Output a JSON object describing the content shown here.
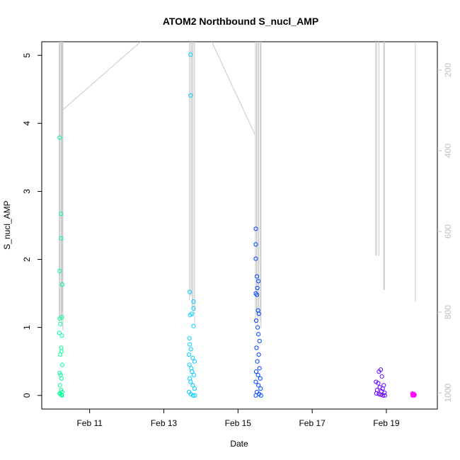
{
  "chart_data": {
    "type": "scatter",
    "title": "ATOM2 Northbound S_nucl_AMP",
    "xlabel": "Date",
    "ylabel": "S_nucl_AMP",
    "x_axis": {
      "unit": "date",
      "range": [
        "Feb 9 17:00",
        "Feb 20 09:00"
      ],
      "ticks": [
        "Feb 11",
        "Feb 13",
        "Feb 15",
        "Feb 17",
        "Feb 19"
      ]
    },
    "y_axis": {
      "range": [
        -0.2,
        5.2
      ],
      "ticks": [
        "0",
        "1",
        "2",
        "3",
        "4",
        "5"
      ]
    },
    "y2_axis": {
      "note": "secondary right axis, inverted (depth)",
      "range": [
        1040,
        130
      ],
      "ticks": [
        "200",
        "400",
        "600",
        "800",
        "1000"
      ],
      "color": "#c0c0c0"
    },
    "grid": false,
    "series": [
      {
        "color": "#00ff99",
        "day": "Feb 10",
        "points": [
          [
            "Feb 10 04:36",
            3.79
          ],
          [
            "Feb 10 05:31",
            2.67
          ],
          [
            "Feb 10 05:31",
            2.31
          ],
          [
            "Feb 10 04:36",
            1.83
          ],
          [
            "Feb 10 06:14",
            1.63
          ],
          [
            "Feb 10 06:00",
            1.15
          ],
          [
            "Feb 10 04:36",
            1.13
          ],
          [
            "Feb 10 05:00",
            1.05
          ],
          [
            "Feb 10 04:19",
            0.92
          ],
          [
            "Feb 10 06:00",
            0.88
          ],
          [
            "Feb 10 05:31",
            0.7
          ],
          [
            "Feb 10 05:45",
            0.65
          ],
          [
            "Feb 10 05:00",
            0.6
          ],
          [
            "Feb 10 06:14",
            0.45
          ],
          [
            "Feb 10 04:36",
            0.33
          ],
          [
            "Feb 10 05:15",
            0.3
          ],
          [
            "Feb 10 05:45",
            0.25
          ],
          [
            "Feb 10 04:48",
            0.15
          ],
          [
            "Feb 10 05:31",
            0.08
          ],
          [
            "Feb 10 06:14",
            0.05
          ],
          [
            "Feb 10 04:36",
            0.03
          ],
          [
            "Feb 10 05:00",
            0.02
          ],
          [
            "Feb 10 05:45",
            0.01
          ],
          [
            "Feb 10 06:00",
            0.0
          ]
        ]
      },
      {
        "color": "#00ccff",
        "day": "Feb 13",
        "points": [
          [
            "Feb 13 17:17",
            5.01
          ],
          [
            "Feb 13 17:17",
            4.41
          ],
          [
            "Feb 13 16:48",
            1.52
          ],
          [
            "Feb 13 19:12",
            1.38
          ],
          [
            "Feb 13 19:12",
            1.28
          ],
          [
            "Feb 13 18:00",
            1.2
          ],
          [
            "Feb 13 17:02",
            1.18
          ],
          [
            "Feb 13 19:12",
            1.02
          ],
          [
            "Feb 13 16:34",
            0.84
          ],
          [
            "Feb 13 16:48",
            0.75
          ],
          [
            "Feb 13 17:31",
            0.68
          ],
          [
            "Feb 13 16:19",
            0.6
          ],
          [
            "Feb 13 18:43",
            0.55
          ],
          [
            "Feb 13 19:55",
            0.5
          ],
          [
            "Feb 13 16:34",
            0.45
          ],
          [
            "Feb 13 17:46",
            0.4
          ],
          [
            "Feb 13 18:14",
            0.35
          ],
          [
            "Feb 13 19:26",
            0.3
          ],
          [
            "Feb 13 16:48",
            0.25
          ],
          [
            "Feb 13 17:17",
            0.2
          ],
          [
            "Feb 13 18:43",
            0.15
          ],
          [
            "Feb 13 19:55",
            0.1
          ],
          [
            "Feb 13 16:19",
            0.05
          ],
          [
            "Feb 13 17:31",
            0.02
          ],
          [
            "Feb 13 18:58",
            0.0
          ],
          [
            "Feb 13 20:10",
            0.0
          ]
        ]
      },
      {
        "color": "#0044ff",
        "day": "Feb 15",
        "points": [
          [
            "Feb 15 11:31",
            2.45
          ],
          [
            "Feb 15 11:31",
            2.22
          ],
          [
            "Feb 15 11:31",
            2.01
          ],
          [
            "Feb 15 12:14",
            1.75
          ],
          [
            "Feb 15 13:12",
            1.68
          ],
          [
            "Feb 15 12:29",
            1.58
          ],
          [
            "Feb 15 11:31",
            1.5
          ],
          [
            "Feb 15 12:14",
            1.48
          ],
          [
            "Feb 15 12:58",
            1.25
          ],
          [
            "Feb 15 13:26",
            1.2
          ],
          [
            "Feb 15 11:46",
            1.1
          ],
          [
            "Feb 15 12:43",
            1.0
          ],
          [
            "Feb 15 13:12",
            0.9
          ],
          [
            "Feb 15 13:55",
            0.8
          ],
          [
            "Feb 15 12:00",
            0.7
          ],
          [
            "Feb 15 13:26",
            0.6
          ],
          [
            "Feb 15 12:29",
            0.5
          ],
          [
            "Feb 15 13:55",
            0.4
          ],
          [
            "Feb 15 11:46",
            0.35
          ],
          [
            "Feb 15 12:58",
            0.3
          ],
          [
            "Feb 15 14:24",
            0.25
          ],
          [
            "Feb 15 11:31",
            0.2
          ],
          [
            "Feb 15 13:12",
            0.15
          ],
          [
            "Feb 15 14:38",
            0.1
          ],
          [
            "Feb 15 12:14",
            0.05
          ],
          [
            "Feb 15 13:40",
            0.02
          ],
          [
            "Feb 15 14:53",
            0.0
          ],
          [
            "Feb 15 11:31",
            0.0
          ]
        ]
      },
      {
        "color": "#6600ff",
        "day": "Feb 18-19",
        "points": [
          [
            "Feb 18 20:24",
            0.38
          ],
          [
            "Feb 18 19:12",
            0.35
          ],
          [
            "Feb 18 21:07",
            0.28
          ],
          [
            "Feb 18 17:17",
            0.2
          ],
          [
            "Feb 18 18:43",
            0.18
          ],
          [
            "Feb 18 22:19",
            0.15
          ],
          [
            "Feb 18 19:41",
            0.12
          ],
          [
            "Feb 18 21:36",
            0.1
          ],
          [
            "Feb 18 18:00",
            0.08
          ],
          [
            "Feb 18 20:53",
            0.06
          ],
          [
            "Feb 18 22:48",
            0.04
          ],
          [
            "Feb 18 17:31",
            0.03
          ],
          [
            "Feb 18 19:12",
            0.02
          ],
          [
            "Feb 18 20:24",
            0.01
          ],
          [
            "Feb 18 21:50",
            0.0
          ],
          [
            "Feb 18 23:02",
            0.0
          ]
        ]
      },
      {
        "color": "#ff00ff",
        "day": "Feb 19",
        "points": [
          [
            "Feb 19 16:48",
            0.03
          ],
          [
            "Feb 19 17:17",
            0.02
          ],
          [
            "Feb 19 17:46",
            0.02
          ],
          [
            "Feb 19 18:14",
            0.01
          ],
          [
            "Feb 19 17:02",
            0.0
          ],
          [
            "Feb 19 17:31",
            0.0
          ],
          [
            "Feb 19 18:00",
            0.0
          ]
        ]
      }
    ],
    "depth_lines": {
      "color": "#c8c8c8",
      "segments": [
        {
          "x": "Feb 10 04:19",
          "top": 130,
          "bottom": 825
        },
        {
          "x": "Feb 10 04:48",
          "top": 130,
          "bottom": 810
        },
        {
          "x": "Feb 10 05:31",
          "top": 130,
          "bottom": 820
        },
        {
          "x": "Feb 10 06:00",
          "top": 130,
          "bottom": 835
        },
        {
          "x": "Feb 10 06:14",
          "top": 130,
          "bottom": 800
        },
        {
          "x": "Feb 10 06:43",
          "top": 130,
          "bottom": 845
        },
        {
          "x": "Feb 13 16:34",
          "top": 130,
          "bottom": 770
        },
        {
          "x": "Feb 13 17:31",
          "top": 130,
          "bottom": 760
        },
        {
          "x": "Feb 13 18:14",
          "top": 130,
          "bottom": 790
        },
        {
          "x": "Feb 13 18:58",
          "top": 130,
          "bottom": 810
        },
        {
          "x": "Feb 13 19:55",
          "top": 130,
          "bottom": 825
        },
        {
          "x": "Feb 15 11:17",
          "top": 130,
          "bottom": 830
        },
        {
          "x": "Feb 15 12:00",
          "top": 130,
          "bottom": 800
        },
        {
          "x": "Feb 15 12:43",
          "top": 130,
          "bottom": 835
        },
        {
          "x": "Feb 15 13:26",
          "top": 130,
          "bottom": 810
        },
        {
          "x": "Feb 15 14:24",
          "top": 130,
          "bottom": 820
        },
        {
          "x": "Feb 15 14:53",
          "top": 130,
          "bottom": 840
        },
        {
          "x": "Feb 18 17:02",
          "top": 130,
          "bottom": 660
        },
        {
          "x": "Feb 18 17:46",
          "top": 130,
          "bottom": 660
        },
        {
          "x": "Feb 18 19:12",
          "top": 130,
          "bottom": 660
        },
        {
          "x": "Feb 18 22:19",
          "top": 130,
          "bottom": 745
        },
        {
          "x": "Feb 18 22:48",
          "top": 130,
          "bottom": 745
        },
        {
          "x": "Feb 19 18:43",
          "top": 130,
          "bottom": 775
        }
      ],
      "connectors": [
        {
          "from": [
            "Feb 10 06:14",
            300
          ],
          "to": [
            "Feb 12 09:00",
            130
          ]
        },
        {
          "from": [
            "Feb 14 07:00",
            130
          ],
          "to": [
            "Feb 15 11:00",
            360
          ]
        }
      ]
    }
  }
}
